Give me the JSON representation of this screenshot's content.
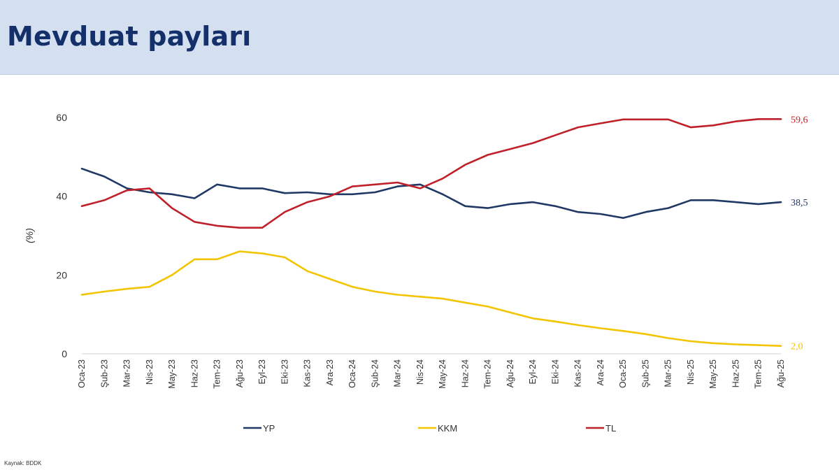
{
  "page": {
    "title": "Mevduat payları",
    "source": "Kaynak: BDDK"
  },
  "colors": {
    "header_bg": "#d4e0f0",
    "title": "#14306a",
    "YP": "#1f3864",
    "KKM": "#f2c500",
    "TL": "#c0202a",
    "axis": "#333333"
  },
  "chart_data": {
    "type": "line",
    "title": "",
    "xlabel": "",
    "ylabel": "(%)",
    "ylim": [
      0,
      60
    ],
    "yticks": [
      0,
      20,
      40,
      60
    ],
    "grid": false,
    "legend": "bottom",
    "x": [
      "Oca-23",
      "Şub-23",
      "Mar-23",
      "Nis-23",
      "May-23",
      "Haz-23",
      "Tem-23",
      "Ağu-23",
      "Eyl-23",
      "Eki-23",
      "Kas-23",
      "Ara-23",
      "Oca-24",
      "Şub-24",
      "Mar-24",
      "Nis-24",
      "May-24",
      "Haz-24",
      "Tem-24",
      "Ağu-24",
      "Eyl-24",
      "Eki-24",
      "Kas-24",
      "Ara-24",
      "Oca-25",
      "Şub-25",
      "Mar-25",
      "Nis-25",
      "May-25",
      "Haz-25",
      "Tem-25",
      "Ağu-25"
    ],
    "series": [
      {
        "name": "YP",
        "color": "#1f3864",
        "end_label": "38,5",
        "values": [
          47.0,
          45.0,
          42.0,
          41.0,
          40.5,
          39.5,
          43.0,
          42.0,
          42.0,
          40.8,
          41.0,
          40.5,
          40.5,
          41.0,
          42.5,
          43.0,
          40.5,
          37.5,
          37.0,
          38.0,
          38.5,
          37.5,
          36.0,
          35.5,
          34.5,
          36.0,
          37.0,
          39.0,
          39.0,
          38.5,
          38.0,
          38.5
        ]
      },
      {
        "name": "KKM",
        "color": "#f2c500",
        "end_label": "2,0",
        "values": [
          15.0,
          15.8,
          16.5,
          17.0,
          20.0,
          24.0,
          24.0,
          26.0,
          25.5,
          24.5,
          21.0,
          19.0,
          17.0,
          15.8,
          15.0,
          14.5,
          14.0,
          13.0,
          12.0,
          10.5,
          9.0,
          8.2,
          7.3,
          6.5,
          5.8,
          5.0,
          4.0,
          3.2,
          2.7,
          2.4,
          2.2,
          2.0
        ]
      },
      {
        "name": "TL",
        "color": "#c0202a",
        "end_label": "59,6",
        "values": [
          37.5,
          39.0,
          41.5,
          42.0,
          37.0,
          33.5,
          32.5,
          32.0,
          32.0,
          36.0,
          38.5,
          40.0,
          42.5,
          43.0,
          43.5,
          42.0,
          44.5,
          48.0,
          50.5,
          52.0,
          53.5,
          55.5,
          57.5,
          58.5,
          59.5,
          59.5,
          59.5,
          57.5,
          58.0,
          59.0,
          59.6,
          59.6
        ]
      }
    ]
  }
}
